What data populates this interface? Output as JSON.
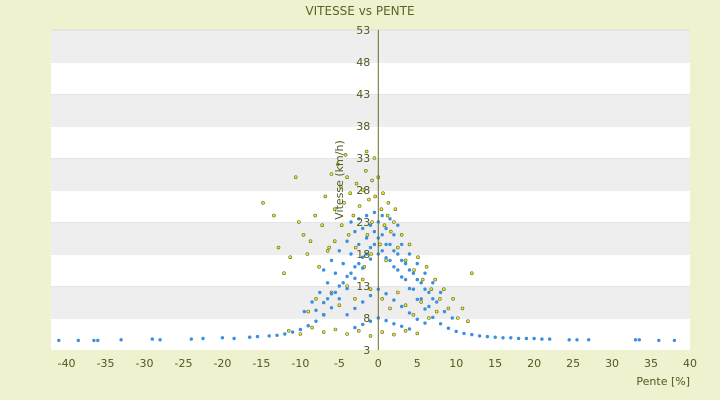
{
  "chart_data": {
    "type": "scatter",
    "title": "VITESSE vs PENTE",
    "xlabel": "Pente [%]",
    "ylabel": "Vitesse (km/h)",
    "xlim": [
      -42,
      40
    ],
    "ylim": [
      3,
      53
    ],
    "xticks": [
      -40,
      -35,
      -30,
      -25,
      -20,
      -15,
      -10,
      -5,
      0,
      5,
      10,
      15,
      20,
      25,
      30,
      35,
      40
    ],
    "yticks": [
      3,
      8,
      13,
      18,
      23,
      28,
      33,
      38,
      43,
      48,
      53
    ],
    "grid": "horizontal bands",
    "legend": "none",
    "series": [
      {
        "color": "#e8e84a",
        "edge": "#6b6b10",
        "points": [
          [
            -14.8,
            26
          ],
          [
            -13.4,
            24
          ],
          [
            -12.8,
            19
          ],
          [
            -12.1,
            15
          ],
          [
            -11.3,
            17.5
          ],
          [
            -10.6,
            30
          ],
          [
            -10.2,
            23
          ],
          [
            -9.6,
            21
          ],
          [
            -9.1,
            18
          ],
          [
            -8.7,
            20
          ],
          [
            -8.1,
            24
          ],
          [
            -7.6,
            16
          ],
          [
            -7.2,
            22.5
          ],
          [
            -6.8,
            27
          ],
          [
            -6.3,
            19
          ],
          [
            -6,
            30.5
          ],
          [
            -5.6,
            25
          ],
          [
            -5.2,
            32
          ],
          [
            -4.8,
            28.5
          ],
          [
            -4.4,
            26
          ],
          [
            -4,
            30
          ],
          [
            -3.6,
            27.5
          ],
          [
            -3.2,
            24
          ],
          [
            -2.8,
            29
          ],
          [
            -2.4,
            25.5
          ],
          [
            -2,
            28
          ],
          [
            -1.6,
            31
          ],
          [
            -1.2,
            26.5
          ],
          [
            -0.8,
            29.5
          ],
          [
            -0.4,
            27
          ],
          [
            0,
            30
          ],
          [
            0.4,
            25
          ],
          [
            0.8,
            22.5
          ],
          [
            1.2,
            24
          ],
          [
            1.6,
            21.5
          ],
          [
            2,
            23
          ],
          [
            2.5,
            19
          ],
          [
            3,
            21
          ],
          [
            3.5,
            17
          ],
          [
            4,
            19.5
          ],
          [
            4.6,
            15.5
          ],
          [
            5.1,
            17.5
          ],
          [
            5.7,
            14
          ],
          [
            6.2,
            16
          ],
          [
            6.8,
            12.5
          ],
          [
            7.3,
            14
          ],
          [
            7.9,
            11
          ],
          [
            8.4,
            12.5
          ],
          [
            9,
            9.5
          ],
          [
            9.6,
            11
          ],
          [
            10.2,
            8
          ],
          [
            10.8,
            9.5
          ],
          [
            11.5,
            7.5
          ],
          [
            12,
            15
          ],
          [
            -9,
            9
          ],
          [
            -8,
            11
          ],
          [
            -7,
            8.5
          ],
          [
            -6,
            12
          ],
          [
            -5,
            10
          ],
          [
            -4,
            13
          ],
          [
            -3,
            11
          ],
          [
            -2,
            14
          ],
          [
            -1,
            12.5
          ],
          [
            0.5,
            11
          ],
          [
            1.5,
            9.5
          ],
          [
            2.5,
            12
          ],
          [
            3.5,
            10
          ],
          [
            4.5,
            8.5
          ],
          [
            5.5,
            10.5
          ],
          [
            6.5,
            8
          ],
          [
            7.5,
            9
          ],
          [
            -11.5,
            6
          ],
          [
            -10,
            5.5
          ],
          [
            -8.5,
            6.5
          ],
          [
            -7,
            5.8
          ],
          [
            -5.5,
            6.2
          ],
          [
            -4,
            5.5
          ],
          [
            -2.5,
            6
          ],
          [
            -1,
            5.2
          ],
          [
            0.5,
            5.8
          ],
          [
            2,
            5.4
          ],
          [
            3.5,
            6
          ],
          [
            5,
            5.6
          ],
          [
            -1.8,
            16
          ],
          [
            -0.9,
            18
          ],
          [
            0.2,
            19.5
          ],
          [
            1,
            17
          ],
          [
            -2.9,
            19
          ],
          [
            -3.8,
            21
          ],
          [
            -4.7,
            22.5
          ],
          [
            -5.6,
            20
          ],
          [
            -6.5,
            18.5
          ],
          [
            -0.5,
            33
          ],
          [
            -1.5,
            34
          ],
          [
            -4.2,
            33.5
          ],
          [
            -0.8,
            23
          ],
          [
            -1.4,
            21
          ],
          [
            0.6,
            27.5
          ],
          [
            1.3,
            26
          ],
          [
            2.2,
            25
          ]
        ]
      },
      {
        "color": "#3a8fde",
        "edge": "#3a8fde",
        "points": [
          [
            -41,
            4.5
          ],
          [
            -38.5,
            4.5
          ],
          [
            -36.5,
            4.5
          ],
          [
            -36,
            4.5
          ],
          [
            -33,
            4.6
          ],
          [
            -29,
            4.7
          ],
          [
            -28,
            4.6
          ],
          [
            -24,
            4.7
          ],
          [
            -22.5,
            4.8
          ],
          [
            -20,
            4.9
          ],
          [
            -18.5,
            4.8
          ],
          [
            -16.5,
            5
          ],
          [
            -15.5,
            5.1
          ],
          [
            -14,
            5.2
          ],
          [
            -13,
            5.3
          ],
          [
            -12,
            5.5
          ],
          [
            -11,
            5.8
          ],
          [
            -10,
            6.2
          ],
          [
            -9,
            6.8
          ],
          [
            -8,
            7.5
          ],
          [
            -7,
            8.5
          ],
          [
            -6,
            9.6
          ],
          [
            -5,
            11
          ],
          [
            -4,
            12.6
          ],
          [
            -3,
            14.2
          ],
          [
            -2,
            15.8
          ],
          [
            -1,
            17.2
          ],
          [
            0,
            18
          ],
          [
            1,
            17.4
          ],
          [
            2,
            16
          ],
          [
            3,
            14.4
          ],
          [
            4,
            12.6
          ],
          [
            5,
            10.9
          ],
          [
            6,
            9.4
          ],
          [
            7,
            8.1
          ],
          [
            8,
            7.1
          ],
          [
            9,
            6.4
          ],
          [
            10,
            5.9
          ],
          [
            11,
            5.6
          ],
          [
            12,
            5.4
          ],
          [
            13,
            5.2
          ],
          [
            14,
            5.1
          ],
          [
            15,
            5
          ],
          [
            16,
            4.9
          ],
          [
            17,
            4.9
          ],
          [
            18,
            4.8
          ],
          [
            19,
            4.8
          ],
          [
            20,
            4.8
          ],
          [
            21,
            4.7
          ],
          [
            22,
            4.7
          ],
          [
            24.5,
            4.6
          ],
          [
            25.5,
            4.6
          ],
          [
            27,
            4.6
          ],
          [
            33,
            4.6
          ],
          [
            33.5,
            4.6
          ],
          [
            36,
            4.5
          ],
          [
            38,
            4.5
          ],
          [
            -9.5,
            9
          ],
          [
            -8.5,
            10.5
          ],
          [
            -7.5,
            12
          ],
          [
            -6.5,
            13.5
          ],
          [
            -5.5,
            15
          ],
          [
            -4.5,
            16.5
          ],
          [
            -3.5,
            18
          ],
          [
            -2.5,
            19.5
          ],
          [
            -1.5,
            20.5
          ],
          [
            -0.5,
            21.5
          ],
          [
            0.5,
            21
          ],
          [
            1.5,
            19.5
          ],
          [
            2.5,
            18
          ],
          [
            3.5,
            16.5
          ],
          [
            4.5,
            15
          ],
          [
            5.5,
            13.5
          ],
          [
            6.5,
            12
          ],
          [
            7.5,
            10.5
          ],
          [
            8.5,
            9
          ],
          [
            9.5,
            8
          ],
          [
            -7,
            15.5
          ],
          [
            -6,
            17
          ],
          [
            -5,
            18.5
          ],
          [
            -4,
            20
          ],
          [
            -3,
            21.5
          ],
          [
            -2,
            22
          ],
          [
            -1,
            22.5
          ],
          [
            0,
            23
          ],
          [
            1,
            22
          ],
          [
            2,
            21
          ],
          [
            3,
            19.5
          ],
          [
            4,
            18
          ],
          [
            5,
            16.5
          ],
          [
            6,
            15
          ],
          [
            7,
            13.5
          ],
          [
            8,
            12
          ],
          [
            -3.5,
            23
          ],
          [
            -2.5,
            23.5
          ],
          [
            -1.5,
            24
          ],
          [
            -0.5,
            24.5
          ],
          [
            0.5,
            24
          ],
          [
            1.5,
            23.5
          ],
          [
            2.5,
            22.5
          ],
          [
            -5,
            13
          ],
          [
            -4,
            14.5
          ],
          [
            -3,
            16
          ],
          [
            -2,
            17.5
          ],
          [
            -1,
            19
          ],
          [
            0,
            20.5
          ],
          [
            1,
            19.5
          ],
          [
            2,
            18.5
          ],
          [
            3,
            17
          ],
          [
            4,
            15.5
          ],
          [
            5,
            14
          ],
          [
            6,
            12.5
          ],
          [
            7,
            11
          ],
          [
            -6.5,
            11
          ],
          [
            -5.5,
            12
          ],
          [
            -4.5,
            13.5
          ],
          [
            -3.5,
            15
          ],
          [
            -2.5,
            16.5
          ],
          [
            -1.5,
            18
          ],
          [
            -0.5,
            19.5
          ],
          [
            0.5,
            18.5
          ],
          [
            1.5,
            17
          ],
          [
            2.5,
            15.5
          ],
          [
            3.5,
            14
          ],
          [
            4.5,
            12.5
          ],
          [
            5.5,
            11
          ],
          [
            6.5,
            9.8
          ],
          [
            -8,
            9.2
          ],
          [
            -7,
            10.4
          ],
          [
            -6,
            11.8
          ],
          [
            -4,
            8.5
          ],
          [
            -3,
            9.5
          ],
          [
            -2,
            10.5
          ],
          [
            -1,
            11.5
          ],
          [
            0,
            12.5
          ],
          [
            1,
            11.8
          ],
          [
            2,
            10.8
          ],
          [
            3,
            9.8
          ],
          [
            4,
            8.8
          ],
          [
            5,
            7.8
          ],
          [
            6,
            7.2
          ],
          [
            -3,
            6.5
          ],
          [
            -2,
            7
          ],
          [
            -1,
            7.5
          ],
          [
            0,
            8
          ],
          [
            1,
            7.6
          ],
          [
            2,
            7.1
          ],
          [
            3,
            6.7
          ],
          [
            4,
            6.3
          ]
        ]
      }
    ]
  }
}
